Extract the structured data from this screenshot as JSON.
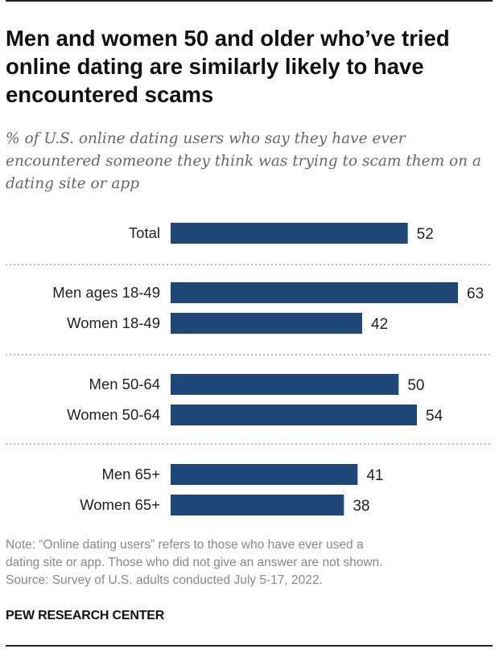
{
  "title": "Men and women 50 and older who’ve tried online dating are similarly likely to have encountered scams",
  "subtitle": "% of U.S. online dating users who say they have ever encountered someone they think was trying to scam them on a dating site or app",
  "chart_data": {
    "type": "bar",
    "orientation": "horizontal",
    "categories": [
      "Total",
      "Men ages 18-49",
      "Women 18-49",
      "Men 50-64",
      "Women 50-64",
      "Men 65+",
      "Women 65+"
    ],
    "values": [
      52,
      63,
      42,
      50,
      54,
      41,
      38
    ],
    "groups": [
      [
        "Total"
      ],
      [
        "Men ages 18-49",
        "Women 18-49"
      ],
      [
        "Men 50-64",
        "Women 50-64"
      ],
      [
        "Men 65+",
        "Women 65+"
      ]
    ],
    "value_labels": [
      "52",
      "63",
      "42",
      "50",
      "54",
      "41",
      "38"
    ],
    "xlim": [
      0,
      63
    ],
    "bar_color": "#1f4777",
    "grid": false,
    "legend": "none"
  },
  "note": {
    "line1": "Note: “Online dating users” refers to those who have ever used a",
    "line2": "dating site or app. Those who did not give an answer are not shown.",
    "line3": "Source: Survey of U.S. adults conducted July 5-17, 2022."
  },
  "brand": "PEW RESEARCH CENTER"
}
